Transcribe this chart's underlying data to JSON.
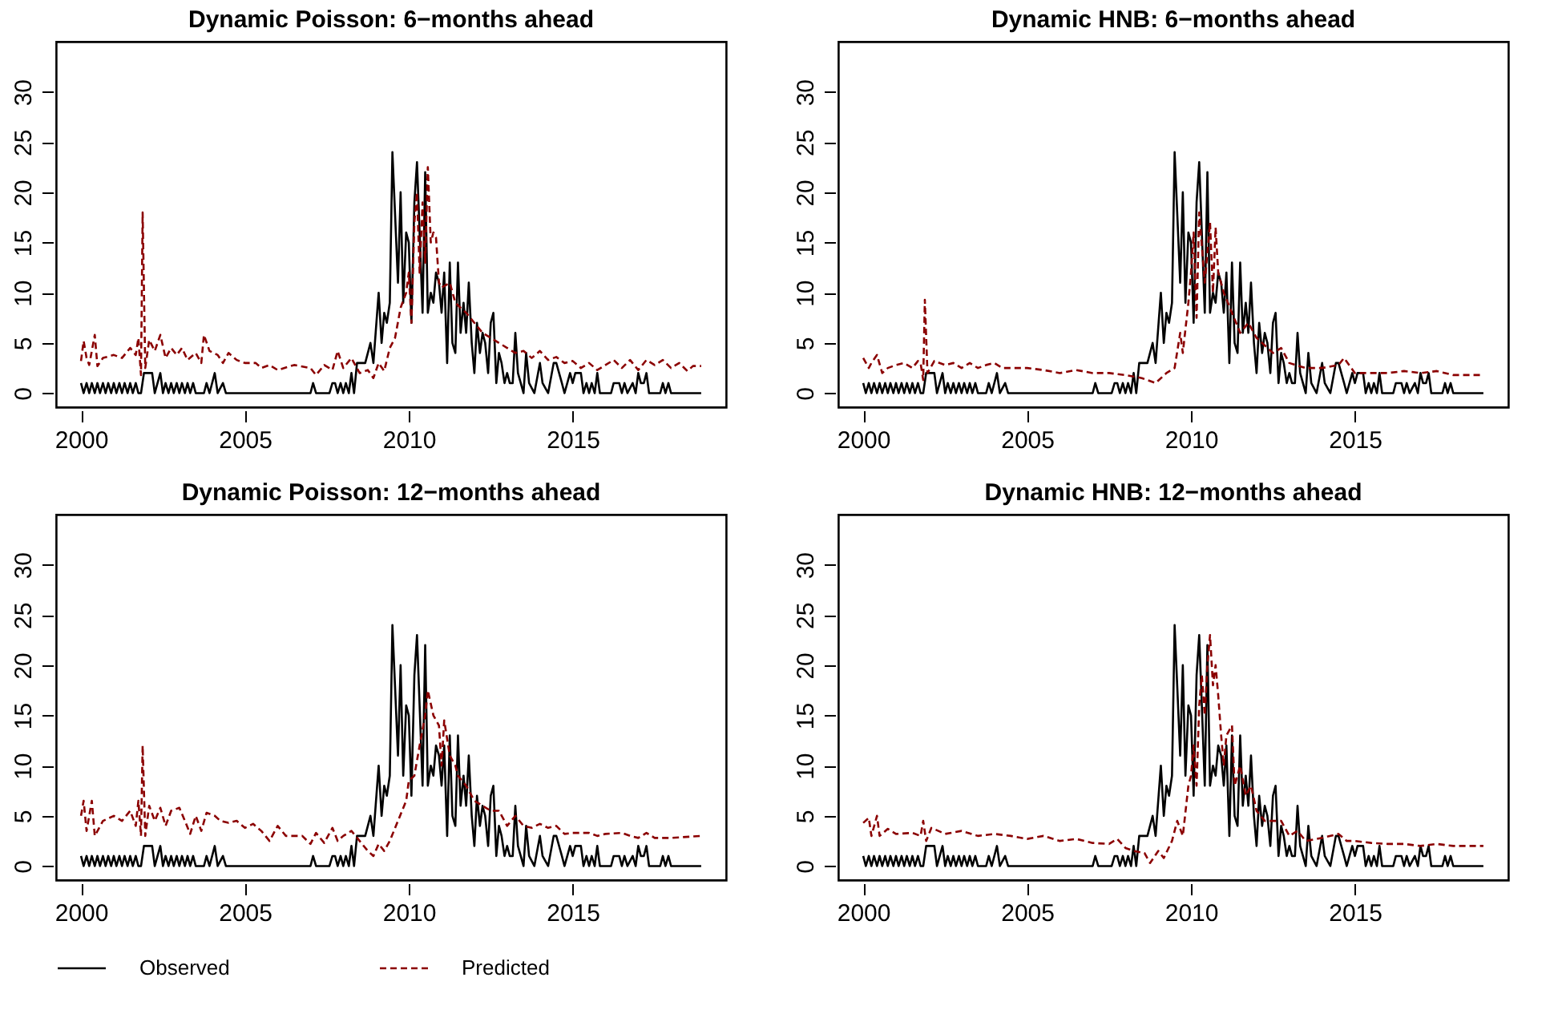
{
  "chart_data": [
    {
      "type": "line",
      "title": "Dynamic Poisson: 6−months ahead",
      "xlim": [
        1999.24,
        2019.68
      ],
      "xticks": [
        2000,
        2005,
        2010,
        2015
      ],
      "ylim": [
        -1.4,
        35
      ],
      "yticks": [
        0,
        5,
        10,
        15,
        20,
        25,
        30
      ],
      "grid": false,
      "legend": "bottom",
      "series": [
        {
          "name": "Observed",
          "color": "#000000",
          "line_style": "solid",
          "x": [
            2000.0,
            2000.08,
            2000.17,
            2000.25,
            2000.33,
            2000.42,
            2000.5,
            2000.58,
            2000.67,
            2000.75,
            2000.83,
            2000.92,
            2001.0,
            2001.08,
            2001.17,
            2001.25,
            2001.33,
            2001.42,
            2001.5,
            2001.58,
            2001.67,
            2001.75,
            2001.83,
            2001.92,
            2002.17,
            2002.25,
            2002.42,
            2002.5,
            2002.58,
            2002.67,
            2002.75,
            2002.83,
            2002.92,
            2003.0,
            2003.08,
            2003.17,
            2003.25,
            2003.33,
            2003.42,
            2003.5,
            2003.75,
            2003.83,
            2003.92,
            2004.08,
            2004.17,
            2004.33,
            2004.42,
            2007.0,
            2007.08,
            2007.17,
            2007.58,
            2007.67,
            2007.75,
            2007.83,
            2007.92,
            2008.0,
            2008.08,
            2008.17,
            2008.25,
            2008.33,
            2008.42,
            2008.5,
            2008.67,
            2008.83,
            2008.92,
            2009.08,
            2009.17,
            2009.25,
            2009.33,
            2009.42,
            2009.5,
            2009.67,
            2009.75,
            2009.83,
            2009.92,
            2010.0,
            2010.08,
            2010.17,
            2010.25,
            2010.33,
            2010.42,
            2010.5,
            2010.58,
            2010.67,
            2010.75,
            2010.83,
            2010.92,
            2011.0,
            2011.08,
            2011.17,
            2011.25,
            2011.33,
            2011.42,
            2011.5,
            2011.58,
            2011.67,
            2011.75,
            2011.83,
            2011.92,
            2012.0,
            2012.08,
            2012.17,
            2012.25,
            2012.33,
            2012.42,
            2012.5,
            2012.58,
            2012.67,
            2012.75,
            2012.83,
            2012.92,
            2013.0,
            2013.08,
            2013.17,
            2013.25,
            2013.33,
            2013.5,
            2013.58,
            2013.67,
            2013.83,
            2014.0,
            2014.08,
            2014.25,
            2014.42,
            2014.5,
            2014.67,
            2014.75,
            2014.92,
            2015.0,
            2015.08,
            2015.25,
            2015.33,
            2015.42,
            2015.5,
            2015.58,
            2015.67,
            2015.75,
            2015.83,
            2016.17,
            2016.25,
            2016.42,
            2016.5,
            2016.58,
            2016.67,
            2016.83,
            2016.92,
            2017.0,
            2017.08,
            2017.17,
            2017.25,
            2017.33,
            2017.67,
            2017.75,
            2017.83,
            2017.92,
            2018.0,
            2018.92
          ],
          "values": [
            1,
            0,
            1,
            0,
            1,
            0,
            1,
            0,
            1,
            0,
            1,
            0,
            1,
            0,
            1,
            0,
            1,
            0,
            1,
            0,
            1,
            0,
            0,
            2,
            2,
            0,
            2,
            0,
            1,
            0,
            1,
            0,
            1,
            0,
            1,
            0,
            1,
            0,
            1,
            0,
            0,
            1,
            0,
            2,
            0,
            1,
            0,
            0,
            1,
            0,
            0,
            1,
            1,
            0,
            1,
            0,
            1,
            0,
            2,
            0,
            3,
            3,
            3,
            5,
            3,
            10,
            5,
            8,
            7,
            9,
            24,
            11,
            20,
            9,
            16,
            15,
            7,
            19,
            23,
            16,
            8,
            22,
            8,
            10,
            9,
            12,
            11,
            8,
            12,
            3,
            13,
            5,
            4,
            13,
            6,
            9,
            6,
            11,
            5,
            2,
            7,
            4,
            6,
            5,
            2,
            7,
            8,
            1,
            4,
            3,
            1,
            2,
            1,
            1,
            6,
            2,
            0,
            4,
            1,
            0,
            3,
            1,
            0,
            3,
            3,
            1,
            0,
            2,
            1,
            2,
            2,
            0,
            1,
            0,
            1,
            0,
            2,
            0,
            0,
            1,
            1,
            0,
            1,
            0,
            1,
            0,
            2,
            1,
            1,
            2,
            0,
            0,
            1,
            0,
            1,
            0,
            0
          ]
        },
        {
          "name": "Predicted",
          "color": "#8b0000",
          "line_style": "dashed",
          "x": [
            2000.0,
            2000.08,
            2000.17,
            2000.25,
            2000.42,
            2000.5,
            2000.67,
            2001.0,
            2001.25,
            2001.5,
            2001.67,
            2001.75,
            2001.83,
            2001.88,
            2001.96,
            2002.08,
            2002.25,
            2002.42,
            2002.58,
            2002.75,
            2002.92,
            2003.08,
            2003.25,
            2003.5,
            2003.67,
            2003.75,
            2003.92,
            2004.17,
            2004.33,
            2004.5,
            2004.75,
            2005.0,
            2005.33,
            2005.5,
            2005.75,
            2006.0,
            2006.5,
            2007.0,
            2007.17,
            2007.42,
            2007.67,
            2007.83,
            2008.0,
            2008.25,
            2008.5,
            2008.75,
            2008.92,
            2009.08,
            2009.25,
            2009.42,
            2009.58,
            2009.75,
            2009.92,
            2010.0,
            2010.08,
            2010.17,
            2010.25,
            2010.33,
            2010.42,
            2010.5,
            2010.58,
            2010.67,
            2010.75,
            2010.83,
            2010.92,
            2011.0,
            2011.25,
            2011.42,
            2011.58,
            2011.75,
            2012.0,
            2012.25,
            2012.5,
            2012.75,
            2013.0,
            2013.25,
            2013.5,
            2013.75,
            2014.0,
            2014.25,
            2014.5,
            2014.75,
            2015.0,
            2015.25,
            2015.5,
            2015.75,
            2016.0,
            2016.25,
            2016.5,
            2016.75,
            2017.0,
            2017.25,
            2017.5,
            2017.75,
            2018.0,
            2018.25,
            2018.5,
            2018.67,
            2018.92
          ],
          "values": [
            3.2,
            5.2,
            3.5,
            2.8,
            5.8,
            2.7,
            3.5,
            3.8,
            3.5,
            4.5,
            3.8,
            5.5,
            1.8,
            18,
            2.5,
            5.3,
            4.2,
            5.8,
            3.5,
            4.5,
            3.8,
            4.5,
            3.3,
            4,
            3,
            5.8,
            4.2,
            3.8,
            3,
            4,
            3.3,
            3,
            3,
            2.5,
            2.8,
            2.3,
            2.8,
            2.5,
            1.8,
            2.8,
            2.3,
            4.2,
            2.5,
            3.5,
            2,
            2.3,
            1.5,
            3,
            2.2,
            4.5,
            5.5,
            8.5,
            10,
            12,
            7,
            17,
            20,
            12,
            19,
            13,
            22.5,
            15,
            16,
            15.5,
            11,
            10.5,
            11,
            9,
            8.5,
            8,
            7,
            6,
            5.5,
            5,
            4.5,
            4,
            4.2,
            3.5,
            4.2,
            3.3,
            3.6,
            3,
            3.2,
            2.5,
            3,
            2.3,
            2.8,
            3.3,
            2.5,
            3.3,
            2.3,
            3.3,
            2.8,
            3.3,
            2.5,
            3,
            2.2,
            2.7,
            2.7
          ]
        }
      ]
    },
    {
      "type": "line",
      "title": "Dynamic HNB: 6−months ahead",
      "xlim": [
        1999.24,
        2019.68
      ],
      "xticks": [
        2000,
        2005,
        2010,
        2015
      ],
      "ylim": [
        -1.4,
        35
      ],
      "yticks": [
        0,
        5,
        10,
        15,
        20,
        25,
        30
      ],
      "grid": false,
      "legend": "bottom",
      "series": [
        {
          "name": "Observed",
          "color": "#000000",
          "line_style": "solid",
          "x": [
            2000.0,
            2000.08,
            2000.17,
            2000.25,
            2000.33,
            2000.42,
            2000.5,
            2000.58,
            2000.67,
            2000.75,
            2000.83,
            2000.92,
            2001.0,
            2001.08,
            2001.17,
            2001.25,
            2001.33,
            2001.42,
            2001.5,
            2001.58,
            2001.67,
            2001.75,
            2001.83,
            2001.92,
            2002.17,
            2002.25,
            2002.42,
            2002.5,
            2002.58,
            2002.67,
            2002.75,
            2002.83,
            2002.92,
            2003.0,
            2003.08,
            2003.17,
            2003.25,
            2003.33,
            2003.42,
            2003.5,
            2003.75,
            2003.83,
            2003.92,
            2004.08,
            2004.17,
            2004.33,
            2004.42,
            2007.0,
            2007.08,
            2007.17,
            2007.58,
            2007.67,
            2007.75,
            2007.83,
            2007.92,
            2008.0,
            2008.08,
            2008.17,
            2008.25,
            2008.33,
            2008.42,
            2008.5,
            2008.67,
            2008.83,
            2008.92,
            2009.08,
            2009.17,
            2009.25,
            2009.33,
            2009.42,
            2009.5,
            2009.67,
            2009.75,
            2009.83,
            2009.92,
            2010.0,
            2010.08,
            2010.17,
            2010.25,
            2010.33,
            2010.42,
            2010.5,
            2010.58,
            2010.67,
            2010.75,
            2010.83,
            2010.92,
            2011.0,
            2011.08,
            2011.17,
            2011.25,
            2011.33,
            2011.42,
            2011.5,
            2011.58,
            2011.67,
            2011.75,
            2011.83,
            2011.92,
            2012.0,
            2012.08,
            2012.17,
            2012.25,
            2012.33,
            2012.42,
            2012.5,
            2012.58,
            2012.67,
            2012.75,
            2012.83,
            2012.92,
            2013.0,
            2013.08,
            2013.17,
            2013.25,
            2013.33,
            2013.5,
            2013.58,
            2013.67,
            2013.83,
            2014.0,
            2014.08,
            2014.25,
            2014.42,
            2014.5,
            2014.67,
            2014.75,
            2014.92,
            2015.0,
            2015.08,
            2015.25,
            2015.33,
            2015.42,
            2015.5,
            2015.58,
            2015.67,
            2015.75,
            2015.83,
            2016.17,
            2016.25,
            2016.42,
            2016.5,
            2016.58,
            2016.67,
            2016.83,
            2016.92,
            2017.0,
            2017.08,
            2017.17,
            2017.25,
            2017.33,
            2017.67,
            2017.75,
            2017.83,
            2017.92,
            2018.0,
            2018.92
          ],
          "values": [
            1,
            0,
            1,
            0,
            1,
            0,
            1,
            0,
            1,
            0,
            1,
            0,
            1,
            0,
            1,
            0,
            1,
            0,
            1,
            0,
            1,
            0,
            0,
            2,
            2,
            0,
            2,
            0,
            1,
            0,
            1,
            0,
            1,
            0,
            1,
            0,
            1,
            0,
            1,
            0,
            0,
            1,
            0,
            2,
            0,
            1,
            0,
            0,
            1,
            0,
            0,
            1,
            1,
            0,
            1,
            0,
            1,
            0,
            2,
            0,
            3,
            3,
            3,
            5,
            3,
            10,
            5,
            8,
            7,
            9,
            24,
            11,
            20,
            9,
            16,
            15,
            7,
            19,
            23,
            16,
            8,
            22,
            8,
            10,
            9,
            12,
            11,
            8,
            12,
            3,
            13,
            5,
            4,
            13,
            6,
            9,
            6,
            11,
            5,
            2,
            7,
            4,
            6,
            5,
            2,
            7,
            8,
            1,
            4,
            3,
            1,
            2,
            1,
            1,
            6,
            2,
            0,
            4,
            1,
            0,
            3,
            1,
            0,
            3,
            3,
            1,
            0,
            2,
            1,
            2,
            2,
            0,
            1,
            0,
            1,
            0,
            2,
            0,
            0,
            1,
            1,
            0,
            1,
            0,
            1,
            0,
            2,
            1,
            1,
            2,
            0,
            0,
            1,
            0,
            1,
            0,
            0
          ]
        },
        {
          "name": "Predicted",
          "color": "#8b0000",
          "line_style": "dashed",
          "x": [
            2000.0,
            2000.17,
            2000.25,
            2000.42,
            2000.58,
            2000.75,
            2001.0,
            2001.25,
            2001.5,
            2001.67,
            2001.75,
            2001.83,
            2001.88,
            2001.96,
            2002.17,
            2002.5,
            2002.75,
            2003.0,
            2003.25,
            2003.5,
            2003.75,
            2004.0,
            2004.25,
            2004.5,
            2005.0,
            2005.5,
            2006.0,
            2006.5,
            2007.0,
            2007.5,
            2008.0,
            2008.5,
            2008.92,
            2009.25,
            2009.5,
            2009.67,
            2009.75,
            2009.92,
            2010.0,
            2010.08,
            2010.17,
            2010.25,
            2010.42,
            2010.58,
            2010.67,
            2010.75,
            2010.83,
            2011.0,
            2011.25,
            2011.5,
            2011.75,
            2012.0,
            2012.5,
            2012.75,
            2013.0,
            2013.5,
            2014.0,
            2014.5,
            2014.67,
            2015.0,
            2015.5,
            2016.0,
            2016.5,
            2017.0,
            2017.5,
            2018.0,
            2018.5,
            2018.92
          ],
          "values": [
            3.5,
            2.5,
            3,
            3.8,
            2,
            2.5,
            2.8,
            3,
            2.5,
            3.2,
            3,
            1.3,
            9.3,
            2,
            3.2,
            2.8,
            3,
            2.5,
            3,
            2.5,
            2.8,
            3,
            2.5,
            2.5,
            2.5,
            2.3,
            2,
            2.3,
            2,
            2,
            1.8,
            1.5,
            1,
            2,
            2.5,
            6,
            4,
            9,
            12,
            16,
            7.5,
            18,
            11,
            17,
            10,
            16.5,
            12,
            10,
            8,
            6,
            7,
            5.5,
            4,
            4.5,
            3,
            2.5,
            2.5,
            2.8,
            3.5,
            2,
            2,
            2,
            2.2,
            2,
            2.2,
            1.8,
            1.8,
            1.8
          ]
        }
      ]
    },
    {
      "type": "line",
      "title": "Dynamic Poisson: 12−months ahead",
      "xlim": [
        1999.24,
        2019.68
      ],
      "xticks": [
        2000,
        2005,
        2010,
        2015
      ],
      "ylim": [
        -1.4,
        35
      ],
      "yticks": [
        0,
        5,
        10,
        15,
        20,
        25,
        30
      ],
      "grid": false,
      "legend": "bottom",
      "series": [
        {
          "name": "Observed",
          "color": "#000000",
          "line_style": "solid",
          "x": [
            2000.0,
            2000.08,
            2000.17,
            2000.25,
            2000.33,
            2000.42,
            2000.5,
            2000.58,
            2000.67,
            2000.75,
            2000.83,
            2000.92,
            2001.0,
            2001.08,
            2001.17,
            2001.25,
            2001.33,
            2001.42,
            2001.5,
            2001.58,
            2001.67,
            2001.75,
            2001.83,
            2001.92,
            2002.17,
            2002.25,
            2002.42,
            2002.5,
            2002.58,
            2002.67,
            2002.75,
            2002.83,
            2002.92,
            2003.0,
            2003.08,
            2003.17,
            2003.25,
            2003.33,
            2003.42,
            2003.5,
            2003.75,
            2003.83,
            2003.92,
            2004.08,
            2004.17,
            2004.33,
            2004.42,
            2007.0,
            2007.08,
            2007.17,
            2007.58,
            2007.67,
            2007.75,
            2007.83,
            2007.92,
            2008.0,
            2008.08,
            2008.17,
            2008.25,
            2008.33,
            2008.42,
            2008.5,
            2008.67,
            2008.83,
            2008.92,
            2009.08,
            2009.17,
            2009.25,
            2009.33,
            2009.42,
            2009.5,
            2009.67,
            2009.75,
            2009.83,
            2009.92,
            2010.0,
            2010.08,
            2010.17,
            2010.25,
            2010.33,
            2010.42,
            2010.5,
            2010.58,
            2010.67,
            2010.75,
            2010.83,
            2010.92,
            2011.0,
            2011.08,
            2011.17,
            2011.25,
            2011.33,
            2011.42,
            2011.5,
            2011.58,
            2011.67,
            2011.75,
            2011.83,
            2011.92,
            2012.0,
            2012.08,
            2012.17,
            2012.25,
            2012.33,
            2012.42,
            2012.5,
            2012.58,
            2012.67,
            2012.75,
            2012.83,
            2012.92,
            2013.0,
            2013.08,
            2013.17,
            2013.25,
            2013.33,
            2013.5,
            2013.58,
            2013.67,
            2013.83,
            2014.0,
            2014.08,
            2014.25,
            2014.42,
            2014.5,
            2014.67,
            2014.75,
            2014.92,
            2015.0,
            2015.08,
            2015.25,
            2015.33,
            2015.42,
            2015.5,
            2015.58,
            2015.67,
            2015.75,
            2015.83,
            2016.17,
            2016.25,
            2016.42,
            2016.5,
            2016.58,
            2016.67,
            2016.83,
            2016.92,
            2017.0,
            2017.08,
            2017.17,
            2017.25,
            2017.33,
            2017.67,
            2017.75,
            2017.83,
            2017.92,
            2018.0,
            2018.92
          ],
          "values": [
            1,
            0,
            1,
            0,
            1,
            0,
            1,
            0,
            1,
            0,
            1,
            0,
            1,
            0,
            1,
            0,
            1,
            0,
            1,
            0,
            1,
            0,
            0,
            2,
            2,
            0,
            2,
            0,
            1,
            0,
            1,
            0,
            1,
            0,
            1,
            0,
            1,
            0,
            1,
            0,
            0,
            1,
            0,
            2,
            0,
            1,
            0,
            0,
            1,
            0,
            0,
            1,
            1,
            0,
            1,
            0,
            1,
            0,
            2,
            0,
            3,
            3,
            3,
            5,
            3,
            10,
            5,
            8,
            7,
            9,
            24,
            11,
            20,
            9,
            16,
            15,
            7,
            19,
            23,
            16,
            8,
            22,
            8,
            10,
            9,
            12,
            11,
            8,
            12,
            3,
            13,
            5,
            4,
            13,
            6,
            9,
            6,
            11,
            5,
            2,
            7,
            4,
            6,
            5,
            2,
            7,
            8,
            1,
            4,
            3,
            1,
            2,
            1,
            1,
            6,
            2,
            0,
            4,
            1,
            0,
            3,
            1,
            0,
            3,
            3,
            1,
            0,
            2,
            1,
            2,
            2,
            0,
            1,
            0,
            1,
            0,
            2,
            0,
            0,
            1,
            1,
            0,
            1,
            0,
            1,
            0,
            2,
            1,
            1,
            2,
            0,
            0,
            1,
            0,
            1,
            0,
            0
          ]
        },
        {
          "name": "Predicted",
          "color": "#8b0000",
          "line_style": "dashed",
          "x": [
            2000.0,
            2000.08,
            2000.17,
            2000.33,
            2000.42,
            2000.67,
            2001.0,
            2001.25,
            2001.5,
            2001.67,
            2001.75,
            2001.83,
            2001.88,
            2001.96,
            2002.08,
            2002.25,
            2002.42,
            2002.58,
            2002.75,
            2003.0,
            2003.17,
            2003.33,
            2003.5,
            2003.67,
            2003.83,
            2004.08,
            2004.25,
            2004.5,
            2004.75,
            2005.0,
            2005.25,
            2005.5,
            2005.75,
            2006.0,
            2006.25,
            2006.5,
            2006.75,
            2007.0,
            2007.17,
            2007.42,
            2007.67,
            2007.83,
            2008.0,
            2008.25,
            2008.5,
            2008.75,
            2008.92,
            2009.08,
            2009.25,
            2009.42,
            2009.67,
            2009.92,
            2010.0,
            2010.17,
            2010.33,
            2010.5,
            2010.58,
            2010.75,
            2010.92,
            2011.0,
            2011.08,
            2011.25,
            2011.42,
            2011.5,
            2011.75,
            2012.0,
            2012.25,
            2012.5,
            2012.75,
            2013.0,
            2013.25,
            2013.5,
            2013.75,
            2014.0,
            2014.25,
            2014.5,
            2014.75,
            2015.0,
            2015.5,
            2015.75,
            2016.0,
            2016.5,
            2016.75,
            2017.0,
            2017.25,
            2017.5,
            2018.0,
            2018.92
          ],
          "values": [
            5,
            6.5,
            3.5,
            6.5,
            3,
            4.5,
            5,
            4.5,
            5.5,
            4,
            6.5,
            3,
            12,
            3,
            6,
            4.5,
            5.8,
            4,
            5.5,
            5.8,
            4.5,
            3.2,
            5,
            3.5,
            5.3,
            5,
            4.5,
            4.3,
            4.5,
            3.8,
            4.2,
            3.5,
            2.5,
            4,
            3,
            3,
            3,
            2.2,
            3.3,
            2.3,
            3.8,
            2.5,
            3,
            3.5,
            2.5,
            1.5,
            1,
            2.2,
            1.5,
            2.5,
            4.5,
            6.5,
            8.5,
            9,
            12,
            15,
            17.5,
            15,
            14,
            10,
            14.5,
            11,
            10,
            9,
            8,
            6.5,
            6,
            5.5,
            5.5,
            4,
            5,
            4,
            3.8,
            4.2,
            3.8,
            4,
            3.2,
            3.3,
            3.3,
            3,
            3.2,
            3.3,
            3,
            2.8,
            3.3,
            2.8,
            2.8,
            3
          ]
        }
      ]
    },
    {
      "type": "line",
      "title": "Dynamic HNB: 12−months ahead",
      "xlim": [
        1999.24,
        2019.68
      ],
      "xticks": [
        2000,
        2005,
        2010,
        2015
      ],
      "ylim": [
        -1.4,
        35
      ],
      "yticks": [
        0,
        5,
        10,
        15,
        20,
        25,
        30
      ],
      "grid": false,
      "legend": "bottom",
      "series": [
        {
          "name": "Observed",
          "color": "#000000",
          "line_style": "solid",
          "x": [
            2000.0,
            2000.08,
            2000.17,
            2000.25,
            2000.33,
            2000.42,
            2000.5,
            2000.58,
            2000.67,
            2000.75,
            2000.83,
            2000.92,
            2001.0,
            2001.08,
            2001.17,
            2001.25,
            2001.33,
            2001.42,
            2001.5,
            2001.58,
            2001.67,
            2001.75,
            2001.83,
            2001.92,
            2002.17,
            2002.25,
            2002.42,
            2002.5,
            2002.58,
            2002.67,
            2002.75,
            2002.83,
            2002.92,
            2003.0,
            2003.08,
            2003.17,
            2003.25,
            2003.33,
            2003.42,
            2003.5,
            2003.75,
            2003.83,
            2003.92,
            2004.08,
            2004.17,
            2004.33,
            2004.42,
            2007.0,
            2007.08,
            2007.17,
            2007.58,
            2007.67,
            2007.75,
            2007.83,
            2007.92,
            2008.0,
            2008.08,
            2008.17,
            2008.25,
            2008.33,
            2008.42,
            2008.5,
            2008.67,
            2008.83,
            2008.92,
            2009.08,
            2009.17,
            2009.25,
            2009.33,
            2009.42,
            2009.5,
            2009.67,
            2009.75,
            2009.83,
            2009.92,
            2010.0,
            2010.08,
            2010.17,
            2010.25,
            2010.33,
            2010.42,
            2010.5,
            2010.58,
            2010.67,
            2010.75,
            2010.83,
            2010.92,
            2011.0,
            2011.08,
            2011.17,
            2011.25,
            2011.33,
            2011.42,
            2011.5,
            2011.58,
            2011.67,
            2011.75,
            2011.83,
            2011.92,
            2012.0,
            2012.08,
            2012.17,
            2012.25,
            2012.33,
            2012.42,
            2012.5,
            2012.58,
            2012.67,
            2012.75,
            2012.83,
            2012.92,
            2013.0,
            2013.08,
            2013.17,
            2013.25,
            2013.33,
            2013.5,
            2013.58,
            2013.67,
            2013.83,
            2014.0,
            2014.08,
            2014.25,
            2014.42,
            2014.5,
            2014.67,
            2014.75,
            2014.92,
            2015.0,
            2015.08,
            2015.25,
            2015.33,
            2015.42,
            2015.5,
            2015.58,
            2015.67,
            2015.75,
            2015.83,
            2016.17,
            2016.25,
            2016.42,
            2016.5,
            2016.58,
            2016.67,
            2016.83,
            2016.92,
            2017.0,
            2017.08,
            2017.17,
            2017.25,
            2017.33,
            2017.67,
            2017.75,
            2017.83,
            2017.92,
            2018.0,
            2018.92
          ],
          "values": [
            1,
            0,
            1,
            0,
            1,
            0,
            1,
            0,
            1,
            0,
            1,
            0,
            1,
            0,
            1,
            0,
            1,
            0,
            1,
            0,
            1,
            0,
            0,
            2,
            2,
            0,
            2,
            0,
            1,
            0,
            1,
            0,
            1,
            0,
            1,
            0,
            1,
            0,
            1,
            0,
            0,
            1,
            0,
            2,
            0,
            1,
            0,
            0,
            1,
            0,
            0,
            1,
            1,
            0,
            1,
            0,
            1,
            0,
            2,
            0,
            3,
            3,
            3,
            5,
            3,
            10,
            5,
            8,
            7,
            9,
            24,
            11,
            20,
            9,
            16,
            15,
            7,
            19,
            23,
            16,
            8,
            22,
            8,
            10,
            9,
            12,
            11,
            8,
            12,
            3,
            13,
            5,
            4,
            13,
            6,
            9,
            6,
            11,
            5,
            2,
            7,
            4,
            6,
            5,
            2,
            7,
            8,
            1,
            4,
            3,
            1,
            2,
            1,
            1,
            6,
            2,
            0,
            4,
            1,
            0,
            3,
            1,
            0,
            3,
            3,
            1,
            0,
            2,
            1,
            2,
            2,
            0,
            1,
            0,
            1,
            0,
            2,
            0,
            0,
            1,
            1,
            0,
            1,
            0,
            1,
            0,
            2,
            1,
            1,
            2,
            0,
            0,
            1,
            0,
            1,
            0,
            0
          ]
        },
        {
          "name": "Predicted",
          "color": "#8b0000",
          "line_style": "dashed",
          "x": [
            2000.0,
            2000.17,
            2000.25,
            2000.42,
            2000.5,
            2000.75,
            2001.0,
            2001.5,
            2001.75,
            2001.83,
            2001.92,
            2002.08,
            2002.5,
            2003.0,
            2003.5,
            2004.0,
            2004.5,
            2005.0,
            2005.5,
            2006.0,
            2006.5,
            2007.0,
            2007.5,
            2007.75,
            2008.0,
            2008.25,
            2008.58,
            2008.75,
            2009.0,
            2009.17,
            2009.42,
            2009.58,
            2009.75,
            2009.92,
            2010.0,
            2010.08,
            2010.17,
            2010.25,
            2010.33,
            2010.42,
            2010.5,
            2010.58,
            2010.67,
            2010.75,
            2010.83,
            2010.92,
            2011.0,
            2011.08,
            2011.25,
            2011.33,
            2011.5,
            2011.67,
            2011.83,
            2012.0,
            2012.25,
            2012.5,
            2012.75,
            2013.0,
            2013.25,
            2013.5,
            2014.0,
            2014.5,
            2014.75,
            2015.0,
            2015.5,
            2016.0,
            2016.5,
            2017.0,
            2017.5,
            2018.0,
            2018.92
          ],
          "values": [
            4.3,
            4.8,
            3,
            5,
            3,
            3.7,
            3.2,
            3.3,
            3,
            4.5,
            2.5,
            3.8,
            3.2,
            3.5,
            3,
            3.2,
            3,
            2.7,
            3,
            2.5,
            2.7,
            2.3,
            2.2,
            2.7,
            1.8,
            1.5,
            1.3,
            0.3,
            1.5,
            0.8,
            2.5,
            4.5,
            3,
            8,
            9,
            12,
            8,
            16,
            19,
            15,
            20,
            23,
            18,
            20,
            17,
            13,
            10,
            13,
            14,
            8,
            10,
            7,
            8,
            5.5,
            4.5,
            4.5,
            4.5,
            3,
            3.5,
            2.5,
            2.8,
            3.2,
            2.5,
            2.5,
            2.3,
            2.2,
            2.2,
            2,
            2.2,
            2,
            2
          ]
        }
      ]
    }
  ]
}
